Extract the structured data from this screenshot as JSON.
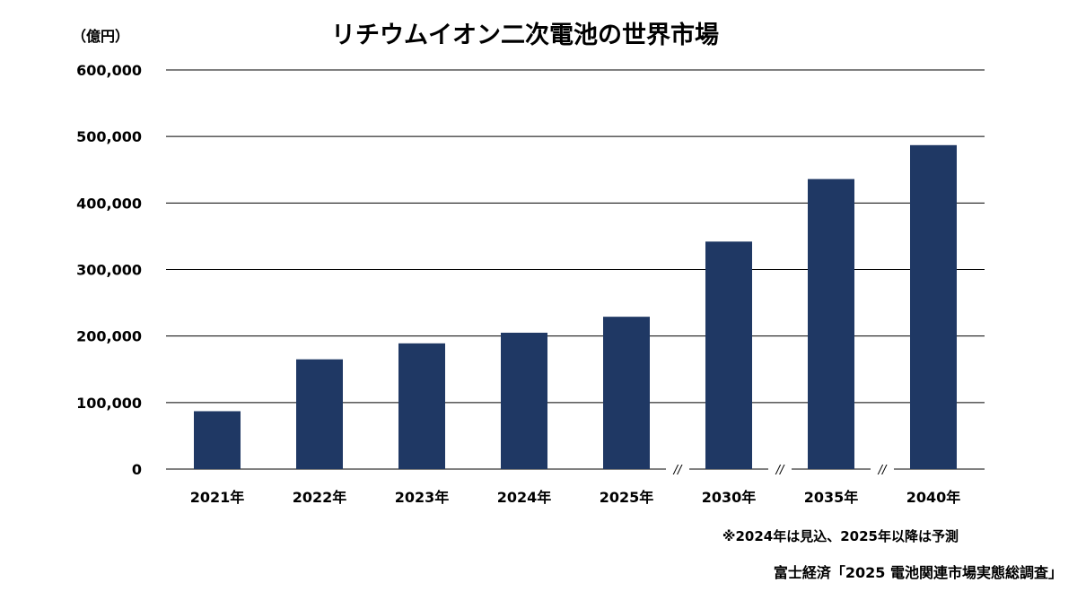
{
  "chart_data": {
    "type": "bar",
    "title": "リチウムイオン二次電池の世界市場",
    "unit_label": "（億円）",
    "categories": [
      "2021年",
      "2022年",
      "2023年",
      "2024年",
      "2025年",
      "2030年",
      "2035年",
      "2040年"
    ],
    "values": [
      87000,
      165000,
      189000,
      205000,
      229000,
      342000,
      436000,
      487000
    ],
    "ylim": [
      0,
      600000
    ],
    "yticks": [
      0,
      100000,
      200000,
      300000,
      400000,
      500000,
      600000
    ],
    "ytick_labels": [
      "0",
      "100,000",
      "200,000",
      "300,000",
      "400,000",
      "500,000",
      "600,000"
    ],
    "grid": true,
    "legend": "none",
    "axis_breaks_after": [
      "2025年",
      "2030年",
      "2035年"
    ],
    "axis_break_symbol": "//",
    "bar_color": "#1f3864",
    "note": "※2024年は見込、2025年以降は予測",
    "source": "富士経済「2025 電池関連市場実態総調査」"
  }
}
